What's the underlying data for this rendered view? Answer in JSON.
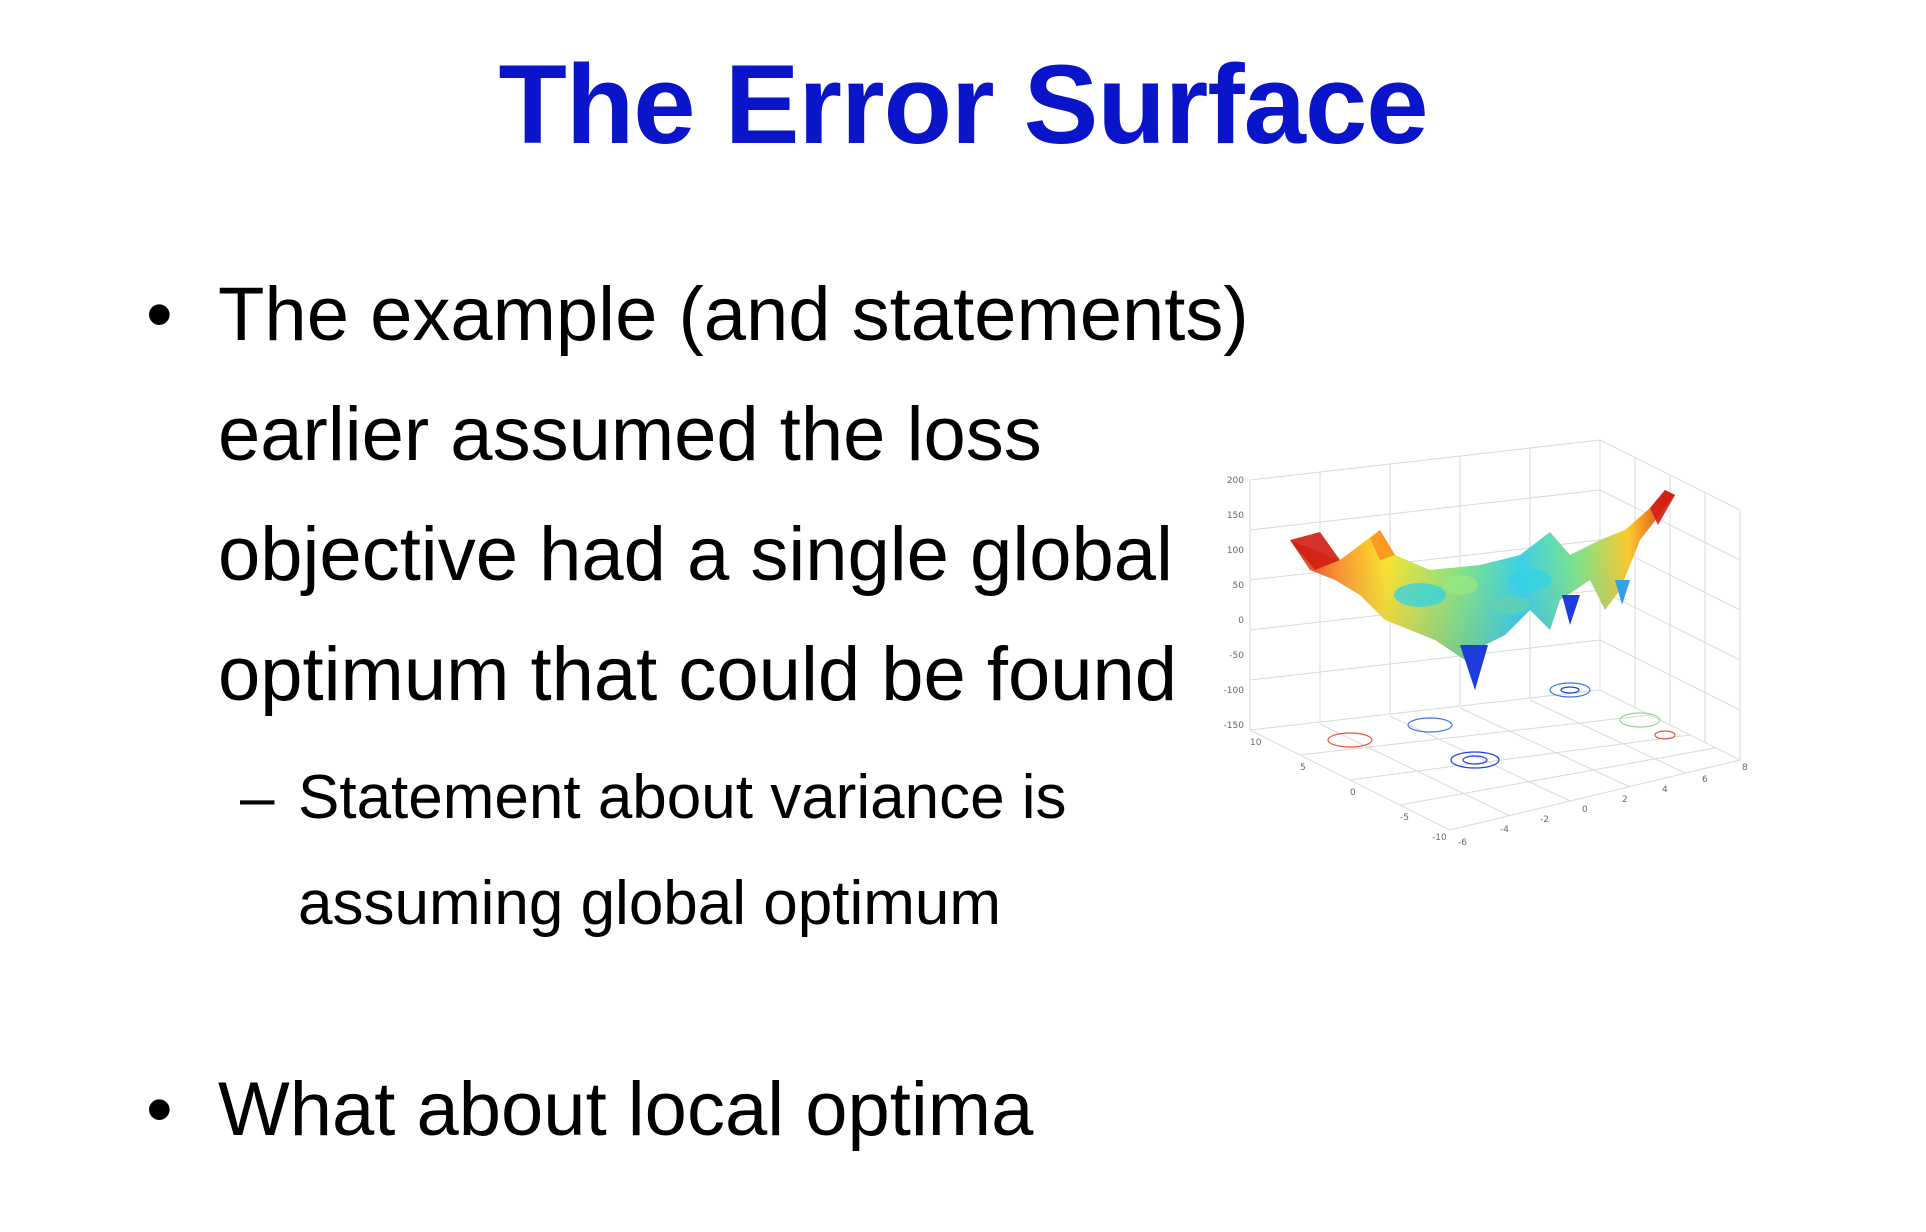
{
  "slide": {
    "title": "The Error Surface"
  },
  "bullets": [
    {
      "lines": [
        "The example (and statements)",
        "earlier assumed the loss",
        "objective had a single global",
        "optimum that could be found"
      ]
    }
  ],
  "sub_bullet": {
    "dash": "–",
    "lines": [
      "Statement about variance is",
      "assuming global optimum"
    ]
  },
  "bullet2": {
    "text": "What about local optima"
  },
  "bullet_symbol": "•",
  "figure": {
    "z_ticks": [
      "200",
      "150",
      "100",
      "50",
      "0",
      "-50",
      "-100",
      "-150"
    ],
    "x_ticks": [
      "10",
      "5",
      "0",
      "-5",
      "-10"
    ],
    "y_ticks": [
      "-6",
      "-4",
      "-2",
      "0",
      "2",
      "4",
      "6",
      "8"
    ],
    "colors": {
      "title": "#0a14c8",
      "surface_high": "#d21e14",
      "surface_mid": "#ffe61e",
      "surface_low": "#1e3cdc"
    }
  }
}
